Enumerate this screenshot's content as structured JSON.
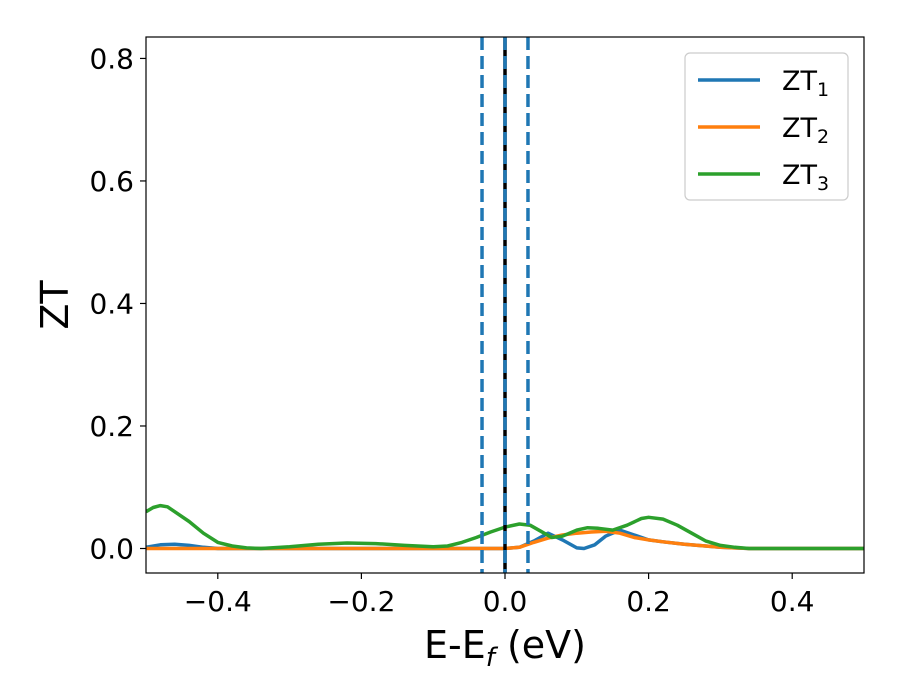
{
  "chart_data": {
    "type": "line",
    "xlabel": {
      "main": "E-E",
      "sub": "f",
      "tail": " (eV)"
    },
    "ylabel": "ZT",
    "xlim": [
      -0.5,
      0.5
    ],
    "ylim": [
      -0.04,
      0.835
    ],
    "x_ticks": [
      {
        "value": -0.4,
        "label": "−0.4"
      },
      {
        "value": -0.2,
        "label": "−0.2"
      },
      {
        "value": 0.0,
        "label": "0.0"
      },
      {
        "value": 0.2,
        "label": "0.2"
      },
      {
        "value": 0.4,
        "label": "0.4"
      }
    ],
    "y_ticks": [
      {
        "value": 0.0,
        "label": "0.0"
      },
      {
        "value": 0.2,
        "label": "0.2"
      },
      {
        "value": 0.4,
        "label": "0.4"
      },
      {
        "value": 0.6,
        "label": "0.6"
      },
      {
        "value": 0.8,
        "label": "0.8"
      }
    ],
    "grid": false,
    "legend_position": "top-right",
    "vertical_lines": [
      {
        "x": 0.0,
        "style": "solid",
        "color": "#000000"
      },
      {
        "x": 0.0,
        "style": "dashed",
        "color": "#1f77b4"
      },
      {
        "x": -0.032,
        "style": "dashed",
        "color": "#1f77b4"
      },
      {
        "x": 0.032,
        "style": "dashed",
        "color": "#1f77b4"
      }
    ],
    "series": [
      {
        "name": "ZT",
        "sub": "1",
        "color": "#1f77b4",
        "points": [
          [
            -0.5,
            0.002
          ],
          [
            -0.48,
            0.006
          ],
          [
            -0.46,
            0.007
          ],
          [
            -0.44,
            0.005
          ],
          [
            -0.42,
            0.002
          ],
          [
            -0.4,
            0.0
          ],
          [
            -0.3,
            0.0
          ],
          [
            -0.2,
            0.0
          ],
          [
            -0.1,
            0.0
          ],
          [
            0.0,
            0.0
          ],
          [
            0.02,
            0.002
          ],
          [
            0.04,
            0.012
          ],
          [
            0.06,
            0.025
          ],
          [
            0.08,
            0.014
          ],
          [
            0.1,
            0.001
          ],
          [
            0.11,
            0.0
          ],
          [
            0.125,
            0.006
          ],
          [
            0.14,
            0.02
          ],
          [
            0.16,
            0.03
          ],
          [
            0.18,
            0.022
          ],
          [
            0.2,
            0.014
          ],
          [
            0.22,
            0.011
          ],
          [
            0.25,
            0.007
          ],
          [
            0.3,
            0.002
          ],
          [
            0.34,
            0.0
          ],
          [
            0.4,
            0.0
          ],
          [
            0.5,
            0.0
          ]
        ]
      },
      {
        "name": "ZT",
        "sub": "2",
        "color": "#ff7f0e",
        "points": [
          [
            -0.5,
            0.0
          ],
          [
            -0.3,
            0.0
          ],
          [
            -0.1,
            0.0
          ],
          [
            0.0,
            0.0
          ],
          [
            0.02,
            0.002
          ],
          [
            0.04,
            0.01
          ],
          [
            0.06,
            0.017
          ],
          [
            0.08,
            0.022
          ],
          [
            0.1,
            0.025
          ],
          [
            0.12,
            0.027
          ],
          [
            0.14,
            0.028
          ],
          [
            0.16,
            0.025
          ],
          [
            0.18,
            0.018
          ],
          [
            0.2,
            0.014
          ],
          [
            0.22,
            0.011
          ],
          [
            0.25,
            0.007
          ],
          [
            0.3,
            0.002
          ],
          [
            0.34,
            0.0
          ],
          [
            0.4,
            0.0
          ],
          [
            0.5,
            0.0
          ]
        ]
      },
      {
        "name": "ZT",
        "sub": "3",
        "color": "#2ca02c",
        "points": [
          [
            -0.5,
            0.06
          ],
          [
            -0.49,
            0.067
          ],
          [
            -0.48,
            0.07
          ],
          [
            -0.47,
            0.068
          ],
          [
            -0.46,
            0.06
          ],
          [
            -0.44,
            0.044
          ],
          [
            -0.42,
            0.025
          ],
          [
            -0.4,
            0.01
          ],
          [
            -0.38,
            0.004
          ],
          [
            -0.36,
            0.001
          ],
          [
            -0.34,
            0.0
          ],
          [
            -0.3,
            0.003
          ],
          [
            -0.26,
            0.007
          ],
          [
            -0.22,
            0.009
          ],
          [
            -0.18,
            0.008
          ],
          [
            -0.14,
            0.005
          ],
          [
            -0.1,
            0.003
          ],
          [
            -0.08,
            0.004
          ],
          [
            -0.06,
            0.01
          ],
          [
            -0.04,
            0.018
          ],
          [
            -0.02,
            0.027
          ],
          [
            0.0,
            0.035
          ],
          [
            0.02,
            0.04
          ],
          [
            0.035,
            0.038
          ],
          [
            0.05,
            0.028
          ],
          [
            0.065,
            0.018
          ],
          [
            0.08,
            0.02
          ],
          [
            0.1,
            0.03
          ],
          [
            0.115,
            0.034
          ],
          [
            0.13,
            0.033
          ],
          [
            0.15,
            0.03
          ],
          [
            0.17,
            0.038
          ],
          [
            0.19,
            0.049
          ],
          [
            0.2,
            0.051
          ],
          [
            0.22,
            0.048
          ],
          [
            0.24,
            0.038
          ],
          [
            0.26,
            0.025
          ],
          [
            0.28,
            0.012
          ],
          [
            0.3,
            0.005
          ],
          [
            0.32,
            0.002
          ],
          [
            0.34,
            0.0
          ],
          [
            0.4,
            0.0
          ],
          [
            0.5,
            0.0
          ]
        ]
      }
    ]
  }
}
